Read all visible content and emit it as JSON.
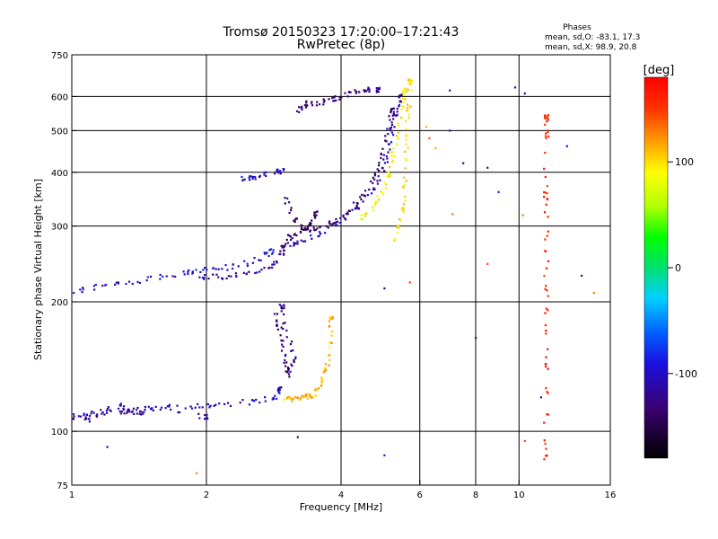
{
  "title_line1": "Tromsø 20150323 17:20:00–17:21:43",
  "title_line2": "RwPretec (8p)",
  "stats": {
    "heading": "Phases",
    "line1": "mean, sd,O: -83.1, 17.3",
    "line2": "mean, sd,X:  98.9, 20.8"
  },
  "colorbar": {
    "unit_label": "[deg]",
    "range": [
      -180,
      180
    ],
    "ticks": [
      {
        "value": 100,
        "label": "100"
      },
      {
        "value": 0,
        "label": "0"
      },
      {
        "value": -100,
        "label": "-100"
      }
    ]
  },
  "chart_data": {
    "type": "scatter",
    "title": "Tromsø 20150323 17:20:00–17:21:43",
    "subtitle": "RwPretec (8p)",
    "xlabel": "Frequency [MHz]",
    "ylabel": "Stationary phase Virtual Height [km]",
    "x_scale": "log",
    "y_scale": "log",
    "xlim": [
      1,
      16
    ],
    "ylim": [
      75,
      750
    ],
    "x_ticks": [
      {
        "value": 1,
        "label": "1"
      },
      {
        "value": 2,
        "label": "2"
      },
      {
        "value": 4,
        "label": "4"
      },
      {
        "value": 6,
        "label": "6"
      },
      {
        "value": 8,
        "label": "8"
      },
      {
        "value": 10,
        "label": "10"
      },
      {
        "value": 16,
        "label": "16"
      }
    ],
    "x_grid": [
      2,
      4,
      6,
      8,
      10
    ],
    "y_ticks": [
      {
        "value": 75,
        "label": "75"
      },
      {
        "value": 100,
        "label": "100"
      },
      {
        "value": 200,
        "label": "200"
      },
      {
        "value": 300,
        "label": "300"
      },
      {
        "value": 400,
        "label": "400"
      },
      {
        "value": 500,
        "label": "500"
      },
      {
        "value": 600,
        "label": "600"
      },
      {
        "value": 750,
        "label": "750"
      }
    ],
    "y_grid": [
      100,
      200,
      300,
      400,
      500,
      600
    ],
    "grid": true,
    "point_color": "phase in degrees (colorbar)",
    "traces": [
      {
        "phase": -112,
        "points": [
          [
            1.0,
            108
          ],
          [
            1.05,
            109
          ],
          [
            1.1,
            110
          ],
          [
            1.2,
            111
          ],
          [
            1.3,
            111.5
          ],
          [
            1.4,
            112
          ],
          [
            1.5,
            113
          ],
          [
            1.6,
            113.5
          ],
          [
            1.8,
            114
          ],
          [
            2.0,
            115
          ],
          [
            2.2,
            116
          ],
          [
            2.5,
            117
          ],
          [
            2.7,
            118
          ],
          [
            2.85,
            121
          ],
          [
            2.92,
            126
          ]
        ]
      },
      {
        "phase": -118,
        "points": [
          [
            1.05,
            105
          ],
          [
            1.1,
            107
          ],
          [
            1.2,
            112
          ],
          [
            1.3,
            116
          ],
          [
            1.4,
            110
          ],
          [
            1.5,
            113
          ],
          [
            2.0,
            108
          ]
        ]
      },
      {
        "phase": -105,
        "points": [
          [
            1.0,
            212
          ],
          [
            1.1,
            215
          ],
          [
            1.2,
            218
          ],
          [
            1.35,
            222
          ],
          [
            1.5,
            226
          ],
          [
            1.7,
            232
          ],
          [
            1.85,
            236
          ],
          [
            2.0,
            238
          ],
          [
            2.2,
            240
          ],
          [
            2.4,
            244
          ],
          [
            2.6,
            250
          ],
          [
            2.8,
            262
          ]
        ]
      },
      {
        "phase": -122,
        "points": [
          [
            1.9,
            230
          ],
          [
            2.0,
            228
          ],
          [
            2.2,
            229
          ],
          [
            2.4,
            231
          ],
          [
            2.6,
            234
          ],
          [
            2.8,
            245
          ],
          [
            2.95,
            260
          ]
        ]
      },
      {
        "phase": -130,
        "points": [
          [
            2.85,
            190
          ],
          [
            2.9,
            175
          ],
          [
            2.95,
            160
          ],
          [
            3.0,
            145
          ],
          [
            3.05,
            135
          ],
          [
            3.1,
            140
          ],
          [
            3.15,
            150
          ],
          [
            3.0,
            170
          ],
          [
            2.95,
            195
          ]
        ]
      },
      {
        "phase": -135,
        "points": [
          [
            2.95,
            265
          ],
          [
            3.0,
            275
          ],
          [
            3.1,
            285
          ],
          [
            3.2,
            290
          ],
          [
            3.4,
            295
          ],
          [
            3.6,
            300
          ],
          [
            3.8,
            305
          ],
          [
            4.0,
            312
          ],
          [
            4.2,
            325
          ],
          [
            4.4,
            345
          ],
          [
            4.6,
            370
          ],
          [
            4.8,
            400
          ],
          [
            4.95,
            440
          ],
          [
            5.05,
            480
          ],
          [
            5.15,
            520
          ],
          [
            5.2,
            560
          ]
        ]
      },
      {
        "phase": -112,
        "points": [
          [
            3.0,
            260
          ],
          [
            3.2,
            275
          ],
          [
            3.5,
            285
          ],
          [
            3.8,
            300
          ],
          [
            4.1,
            315
          ],
          [
            4.4,
            335
          ],
          [
            4.7,
            360
          ],
          [
            4.9,
            395
          ],
          [
            5.05,
            430
          ],
          [
            5.15,
            475
          ],
          [
            5.25,
            520
          ],
          [
            5.35,
            560
          ],
          [
            5.45,
            600
          ]
        ]
      },
      {
        "phase": -130,
        "points": [
          [
            3.2,
            555
          ],
          [
            3.3,
            570
          ],
          [
            3.4,
            580
          ],
          [
            3.6,
            580
          ],
          [
            3.8,
            590
          ],
          [
            4.0,
            600
          ],
          [
            4.2,
            615
          ],
          [
            4.4,
            620
          ],
          [
            4.6,
            625
          ],
          [
            4.85,
            620
          ]
        ]
      },
      {
        "phase": -110,
        "points": [
          [
            2.4,
            385
          ],
          [
            2.5,
            388
          ],
          [
            2.6,
            392
          ],
          [
            2.8,
            398
          ],
          [
            2.95,
            402
          ]
        ]
      },
      {
        "phase": -140,
        "points": [
          [
            3.0,
            350
          ],
          [
            3.1,
            325
          ],
          [
            3.2,
            305
          ],
          [
            3.3,
            295
          ],
          [
            3.4,
            300
          ],
          [
            3.5,
            320
          ]
        ]
      },
      {
        "phase": 112,
        "points": [
          [
            3.0,
            118
          ],
          [
            3.1,
            119
          ],
          [
            3.2,
            119.5
          ],
          [
            3.3,
            120
          ],
          [
            3.4,
            121
          ],
          [
            3.5,
            123
          ],
          [
            3.6,
            128
          ],
          [
            3.7,
            136
          ],
          [
            3.75,
            148
          ],
          [
            3.78,
            165
          ],
          [
            3.8,
            185
          ]
        ]
      },
      {
        "phase": 92,
        "points": [
          [
            4.4,
            310
          ],
          [
            4.6,
            322
          ],
          [
            4.8,
            340
          ],
          [
            5.0,
            365
          ],
          [
            5.1,
            395
          ],
          [
            5.2,
            430
          ],
          [
            5.3,
            470
          ],
          [
            5.4,
            520
          ],
          [
            5.48,
            570
          ],
          [
            5.55,
            620
          ]
        ]
      },
      {
        "phase": 100,
        "points": [
          [
            5.3,
            280
          ],
          [
            5.4,
            300
          ],
          [
            5.5,
            330
          ],
          [
            5.55,
            370
          ],
          [
            5.6,
            420
          ],
          [
            5.62,
            480
          ],
          [
            5.65,
            540
          ],
          [
            5.68,
            600
          ],
          [
            5.7,
            650
          ]
        ]
      },
      {
        "phase": 160,
        "points": [
          [
            11.5,
            80
          ],
          [
            11.5,
            100
          ],
          [
            11.5,
            130
          ],
          [
            11.5,
            160
          ],
          [
            11.5,
            200
          ],
          [
            11.5,
            250
          ],
          [
            11.5,
            300
          ],
          [
            11.5,
            350
          ],
          [
            11.5,
            420
          ],
          [
            11.5,
            500
          ],
          [
            11.5,
            540
          ]
        ]
      },
      {
        "phase": -105,
        "points": [
          [
            7.0,
            500
          ],
          [
            7.5,
            420
          ],
          [
            8.5,
            410
          ],
          [
            9.0,
            360
          ],
          [
            10.3,
            610
          ],
          [
            11.2,
            120
          ],
          [
            12.8,
            460
          ],
          [
            13.8,
            230
          ],
          [
            5.0,
            215
          ],
          [
            5.0,
            88
          ],
          [
            3.2,
            97
          ],
          [
            1.2,
            92
          ],
          [
            9.8,
            630
          ],
          [
            8.0,
            165
          ],
          [
            7.0,
            620
          ]
        ]
      },
      {
        "phase": 130,
        "points": [
          [
            6.2,
            510
          ],
          [
            6.3,
            480
          ],
          [
            6.5,
            455
          ],
          [
            7.1,
            320
          ],
          [
            8.5,
            245
          ],
          [
            10.3,
            95
          ],
          [
            14.7,
            210
          ],
          [
            10.2,
            318
          ],
          [
            1.9,
            80
          ],
          [
            5.7,
            222
          ]
        ]
      }
    ]
  }
}
